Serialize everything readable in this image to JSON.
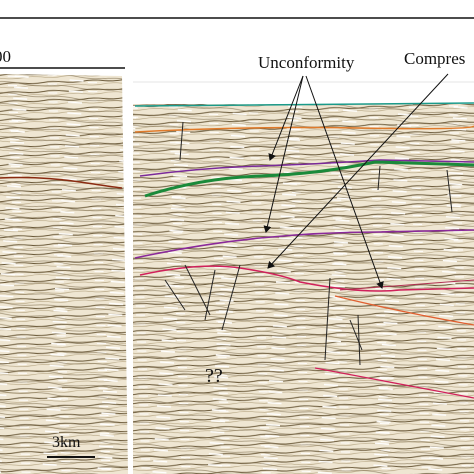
{
  "labels": {
    "scale_top": "00",
    "unconformity": "Unconformity",
    "compression": "Compres",
    "unknown": "??",
    "scale_bar": "3km"
  }
}
